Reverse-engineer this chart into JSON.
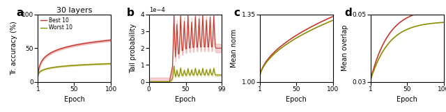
{
  "title_a": "30 layers",
  "label_a": "a",
  "label_b": "b",
  "label_c": "c",
  "label_d": "d",
  "legend_best": "Best 10",
  "legend_worst": "Worst 10",
  "xlabel": "Epoch",
  "ylabel_a": "Tr. accuracy (%)",
  "ylabel_b": "Tail probability",
  "ylabel_c": "Mean norm",
  "ylabel_d": "Mean overlap",
  "color_best": "#c0392b",
  "color_worst": "#8b8b00",
  "color_best_fill": "#e8a0a0",
  "color_worst_fill": "#c8c870",
  "ylim_a": [
    0,
    100
  ],
  "yticks_a": [
    0,
    50,
    100
  ],
  "xlim_a": [
    1,
    100
  ],
  "xticks_a": [
    1,
    50,
    100
  ],
  "ylim_b": [
    0,
    0.0004
  ],
  "xlim_b": [
    0,
    99
  ],
  "xticks_b": [
    0,
    50,
    99
  ],
  "ylim_c": [
    1.0,
    1.35
  ],
  "yticks_c": [
    1.0,
    1.35
  ],
  "xlim_c": [
    1,
    100
  ],
  "xticks_c": [
    1,
    50,
    100
  ],
  "ylim_d": [
    0.03,
    0.05
  ],
  "yticks_d": [
    0.03,
    0.05
  ],
  "xlim_d": [
    1,
    100
  ],
  "xticks_d": [
    1,
    50,
    100
  ]
}
